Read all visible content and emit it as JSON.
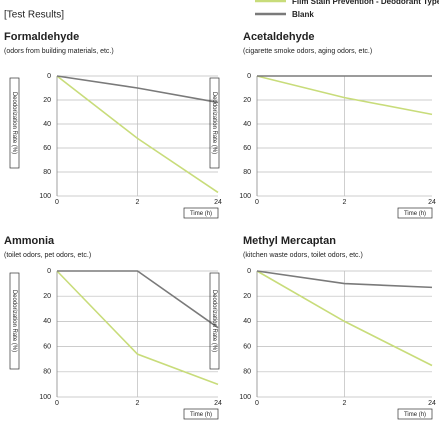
{
  "header": "[Test Results]",
  "chart_data": [
    {
      "type": "line",
      "title": "Formaldehyde",
      "subtitle": "(odors from building materials, etc.)",
      "y_label": "Deodorization Rate (%)",
      "x_label": "Time (h)",
      "categories": [
        "0",
        "2",
        "24"
      ],
      "series": [
        {
          "name": "Film Stain Prevention - Deodorant Type",
          "color": "#c8dc7a",
          "values": [
            0,
            52,
            97
          ]
        },
        {
          "name": "Blank",
          "color": "#7a7a7a",
          "values": [
            0,
            10,
            22
          ]
        }
      ],
      "ylim": [
        0,
        100
      ],
      "yticks": [
        0,
        20,
        40,
        60,
        80,
        100
      ],
      "y_inverted": true,
      "grid": true
    },
    {
      "type": "line",
      "title": "Acetaldehyde",
      "subtitle": "(cigarette smoke odors, aging odors, etc.)",
      "y_label": "Deodorization Rate (%)",
      "x_label": "Time (h)",
      "categories": [
        "0",
        "2",
        "24"
      ],
      "series": [
        {
          "name": "Film Stain Prevention - Deodorant Type",
          "color": "#c8dc7a",
          "values": [
            0,
            18,
            32
          ]
        },
        {
          "name": "Blank",
          "color": "#7a7a7a",
          "values": [
            0,
            0,
            0
          ]
        }
      ],
      "ylim": [
        0,
        100
      ],
      "yticks": [
        0,
        20,
        40,
        60,
        80,
        100
      ],
      "y_inverted": true,
      "grid": true
    },
    {
      "type": "line",
      "title": "Ammonia",
      "subtitle": "(toilet odors, pet odors, etc.)",
      "y_label": "Deodorization Rate (%)",
      "x_label": "Time (h)",
      "categories": [
        "0",
        "2",
        "24"
      ],
      "series": [
        {
          "name": "Film Stain Prevention - Deodorant Type",
          "color": "#c8dc7a",
          "values": [
            0,
            66,
            90
          ]
        },
        {
          "name": "Blank",
          "color": "#7a7a7a",
          "values": [
            0,
            0,
            45
          ]
        }
      ],
      "ylim": [
        0,
        100
      ],
      "yticks": [
        0,
        20,
        40,
        60,
        80,
        100
      ],
      "y_inverted": true,
      "grid": true
    },
    {
      "type": "line",
      "title": "Methyl Mercaptan",
      "subtitle": "(kitchen waste odors, toilet odors, etc.)",
      "y_label": "Deodorization Rate (%)",
      "x_label": "Time (h)",
      "categories": [
        "0",
        "2",
        "24"
      ],
      "series": [
        {
          "name": "Film Stain Prevention - Deodorant Type",
          "color": "#c8dc7a",
          "values": [
            0,
            40,
            75
          ]
        },
        {
          "name": "Blank",
          "color": "#7a7a7a",
          "values": [
            0,
            10,
            13
          ]
        }
      ],
      "ylim": [
        0,
        100
      ],
      "yticks": [
        0,
        20,
        40,
        60,
        80,
        100
      ],
      "y_inverted": true,
      "grid": true
    }
  ]
}
